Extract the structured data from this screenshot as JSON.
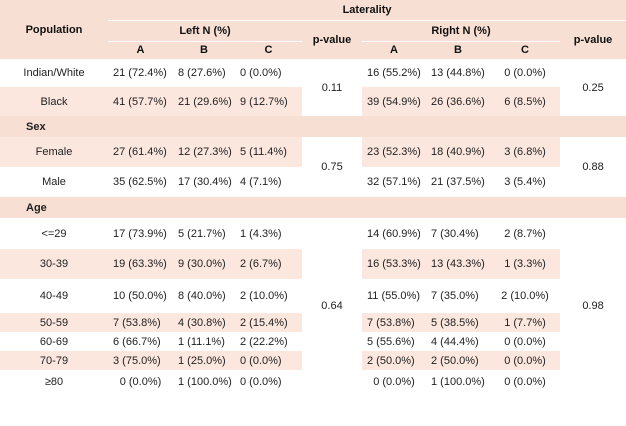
{
  "header": {
    "population": "Population",
    "laterality": "Laterality",
    "left": "Left N (%)",
    "right": "Right N (%)",
    "cols": [
      "A",
      "B",
      "C",
      "p-value",
      "A",
      "B",
      "C",
      "p-value"
    ]
  },
  "rows": {
    "indian": {
      "label": "Indian/White",
      "l": [
        "21 (72.4%)",
        "8 (27.6%)",
        "0 (0.0%)"
      ],
      "r": [
        "16 (55.2%)",
        "13 (44.8%)",
        "0 (0.0%)"
      ]
    },
    "black": {
      "label": "Black",
      "l": [
        "41 (57.7%)",
        "21 (29.6%)",
        "9 (12.7%)"
      ],
      "r": [
        "39 (54.9%)",
        "26 (36.6%)",
        "6 (8.5%)"
      ]
    },
    "female": {
      "label": "Female",
      "l": [
        "27 (61.4%)",
        "12 (27.3%)",
        "5 (11.4%)"
      ],
      "r": [
        "23 (52.3%)",
        "18 (40.9%)",
        "3 (6.8%)"
      ]
    },
    "male": {
      "label": "Male",
      "l": [
        "35 (62.5%)",
        "17 (30.4%)",
        "4 (7.1%)"
      ],
      "r": [
        "32 (57.1%)",
        "21 (37.5%)",
        "3 (5.4%)"
      ]
    },
    "a29": {
      "label": "<=29",
      "l": [
        "17 (73.9%)",
        "5 (21.7%)",
        "1 (4.3%)"
      ],
      "r": [
        "14 (60.9%)",
        "7 (30.4%)",
        "2 (8.7%)"
      ]
    },
    "a30": {
      "label": "30-39",
      "l": [
        "19 (63.3%)",
        "9 (30.0%)",
        "2 (6.7%)"
      ],
      "r": [
        "16 (53.3%)",
        "13 (43.3%)",
        "1 (3.3%)"
      ]
    },
    "a40": {
      "label": "40-49",
      "l": [
        "10 (50.0%)",
        "8 (40.0%)",
        "2 (10.0%)"
      ],
      "r": [
        "11 (55.0%)",
        "7 (35.0%)",
        "2 (10.0%)"
      ]
    },
    "a50": {
      "label": "50-59",
      "l": [
        "7 (53.8%)",
        "4 (30.8%)",
        "2 (15.4%)"
      ],
      "r": [
        "7 (53.8%)",
        "5 (38.5%)",
        "1 (7.7%)"
      ]
    },
    "a60": {
      "label": "60-69",
      "l": [
        "6 (66.7%)",
        "1 (11.1%)",
        "2 (22.2%)"
      ],
      "r": [
        "5 (55.6%)",
        "4 (44.4%)",
        "0 (0.0%)"
      ]
    },
    "a70": {
      "label": "70-79",
      "l": [
        "3 (75.0%)",
        "1 (25.0%)",
        "0 (0.0%)"
      ],
      "r": [
        "2 (50.0%)",
        "2 (50.0%)",
        "0 (0.0%)"
      ]
    },
    "a80": {
      "label": "≥80",
      "l": [
        "0 (0.0%)",
        "1 (100.0%)",
        "0 (0.0%)"
      ],
      "r": [
        "0 (0.0%)",
        "1 (100.0%)",
        "0 (0.0%)"
      ]
    }
  },
  "sections": {
    "sex": "Sex",
    "age": "Age"
  },
  "pvalues": {
    "population_left": "0.11",
    "population_right": "0.25",
    "sex_left": "0.75",
    "sex_right": "0.88",
    "age_left": "0.64",
    "age_right": "0.98"
  }
}
